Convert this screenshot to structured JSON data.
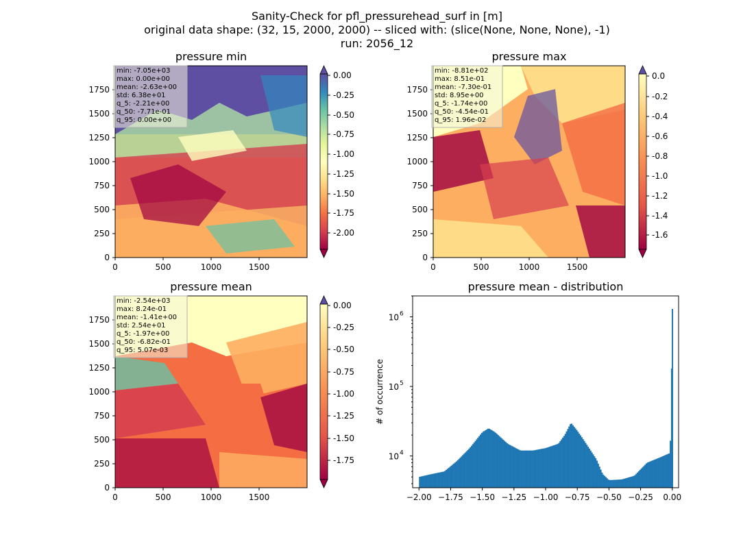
{
  "figure": {
    "title_line1": "Sanity-Check for pfl_pressurehead_surf in [m]",
    "title_line2": "original data shape: (32, 15, 2000, 2000) -- sliced with: (slice(None, None, None), -1)",
    "title_line3": "run: 2056_12"
  },
  "colors": {
    "colormap": "Spectral",
    "histogram_bar": "#1f77b4",
    "over_color": "#5e4fa2",
    "under_color": "#9e0142"
  },
  "chart_data": [
    {
      "type": "heatmap",
      "title": "pressure min",
      "x_ticks": [
        "0",
        "500",
        "1000",
        "1500"
      ],
      "y_ticks": [
        "0",
        "250",
        "500",
        "750",
        "1000",
        "1250",
        "1500",
        "1750"
      ],
      "xlim": [
        0,
        2000
      ],
      "ylim": [
        0,
        2000
      ],
      "colorbar": {
        "range": [
          -2.2,
          0.0
        ],
        "ticks": [
          "0.00",
          "-0.25",
          "-0.50",
          "-0.75",
          "-1.00",
          "-1.25",
          "-1.50",
          "-1.75",
          "-2.00"
        ],
        "extend": "both"
      },
      "stats": [
        "min: -7.05e+03",
        "max: 0.00e+00",
        "mean: -2.63e+00",
        "std: 6.38e+01",
        "q_5: -2.21e+00",
        "q_50: -7.71e-01",
        "q_95: 0.00e+00"
      ]
    },
    {
      "type": "heatmap",
      "title": "pressure max",
      "x_ticks": [
        "0",
        "500",
        "1000",
        "1500"
      ],
      "y_ticks": [
        "0",
        "250",
        "500",
        "750",
        "1000",
        "1250",
        "1500",
        "1750"
      ],
      "xlim": [
        0,
        2000
      ],
      "ylim": [
        0,
        2000
      ],
      "colorbar": {
        "range": [
          -1.74,
          0.02
        ],
        "ticks": [
          "0.0",
          "-0.2",
          "-0.4",
          "-0.6",
          "-0.8",
          "-1.0",
          "-1.2",
          "-1.4",
          "-1.6"
        ],
        "extend": "both"
      },
      "stats": [
        "min: -8.81e+02",
        "max: 8.51e-01",
        "mean: -7.30e-01",
        "std: 8.95e+00",
        "q_5: -1.74e+00",
        "q_50: -4.54e-01",
        "q_95: 1.96e-02"
      ]
    },
    {
      "type": "heatmap",
      "title": "pressure mean",
      "x_ticks": [
        "0",
        "500",
        "1000",
        "1500"
      ],
      "y_ticks": [
        "0",
        "250",
        "500",
        "750",
        "1000",
        "1250",
        "1500",
        "1750"
      ],
      "xlim": [
        0,
        2000
      ],
      "ylim": [
        0,
        2000
      ],
      "colorbar": {
        "range": [
          -1.97,
          0.005
        ],
        "ticks": [
          "0.00",
          "-0.25",
          "-0.50",
          "-0.75",
          "-1.00",
          "-1.25",
          "-1.50",
          "-1.75"
        ],
        "extend": "both"
      },
      "stats": [
        "min: -2.54e+03",
        "max: 8.24e-01",
        "mean: -1.41e+00",
        "std: 2.54e+01",
        "q_5: -1.97e+00",
        "q_50: -6.82e-01",
        "q_95: 5.07e-03"
      ]
    },
    {
      "type": "bar",
      "title": "pressure mean - distribution",
      "ylabel": "# of occurrence",
      "xlabel": "",
      "y_scale": "log",
      "xlim": [
        -2.05,
        0.05
      ],
      "ylim": [
        3500,
        2000000
      ],
      "x_ticks": [
        "−2.00",
        "−1.75",
        "−1.50",
        "−1.25",
        "−1.00",
        "−0.75",
        "−0.50",
        "−0.25",
        "0.00"
      ],
      "y_ticks": [
        {
          "value": 10000,
          "base": "10",
          "exp": "4"
        },
        {
          "value": 100000,
          "base": "10",
          "exp": "5"
        },
        {
          "value": 1000000,
          "base": "10",
          "exp": "6"
        }
      ],
      "x": [
        -2.0,
        -1.9,
        -1.8,
        -1.7,
        -1.6,
        -1.5,
        -1.45,
        -1.4,
        -1.3,
        -1.2,
        -1.1,
        -1.0,
        -0.9,
        -0.85,
        -0.8,
        -0.75,
        -0.7,
        -0.6,
        -0.55,
        -0.5,
        -0.4,
        -0.3,
        -0.2,
        -0.1,
        -0.02,
        -0.01,
        0.0
      ],
      "values": [
        5000,
        5500,
        6000,
        8500,
        13000,
        22000,
        25000,
        22000,
        15000,
        12000,
        12000,
        13000,
        15000,
        20000,
        30000,
        23000,
        17000,
        9000,
        5500,
        4500,
        4600,
        5200,
        8000,
        9500,
        11000,
        25000,
        1300000
      ]
    }
  ]
}
